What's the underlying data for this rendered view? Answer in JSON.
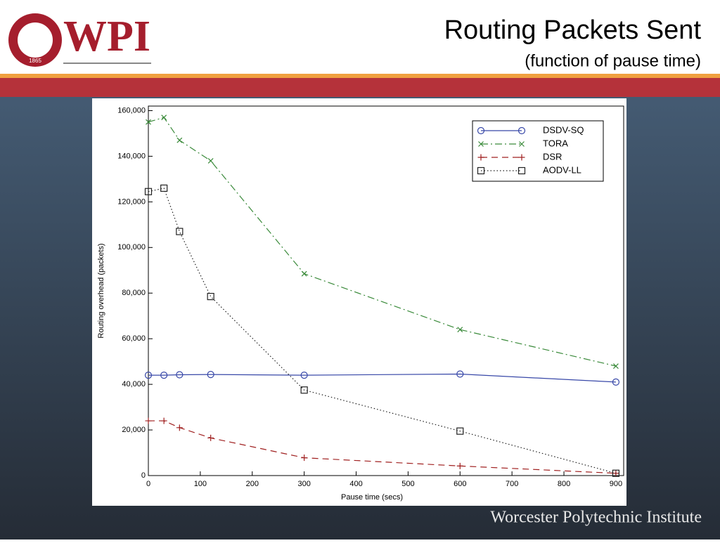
{
  "header": {
    "title": "Routing Packets Sent",
    "subtitle": "(function of pause time)",
    "logo": "WPI",
    "logo_year": "1865"
  },
  "footer": "Worcester Polytechnic Institute",
  "chart_data": {
    "type": "line",
    "xlabel": "Pause time (secs)",
    "ylabel": "Routing overhead (packets)",
    "x": [
      0,
      30,
      60,
      120,
      300,
      600,
      900
    ],
    "series": [
      {
        "name": "DSDV-SQ",
        "color": "#3848a8",
        "marker": "circle",
        "dash": "solid",
        "values": [
          44000,
          44000,
          44200,
          44300,
          44000,
          44500,
          41000
        ]
      },
      {
        "name": "TORA",
        "color": "#3a8a3a",
        "marker": "x",
        "dash": "dashdot",
        "values": [
          155000,
          157000,
          147000,
          138000,
          88500,
          64000,
          48000
        ]
      },
      {
        "name": "DSR",
        "color": "#a02020",
        "marker": "plus",
        "dash": "dashed",
        "values": [
          24000,
          24000,
          21000,
          16500,
          7800,
          4200,
          1000
        ]
      },
      {
        "name": "AODV-LL",
        "color": "#222222",
        "marker": "square",
        "dash": "dotted",
        "values": [
          124500,
          126000,
          107000,
          78500,
          37500,
          19500,
          1000
        ]
      }
    ],
    "xlim": [
      0,
      915
    ],
    "ylim": [
      0,
      162000
    ],
    "xticks": [
      0,
      100,
      200,
      300,
      400,
      500,
      600,
      700,
      800,
      900
    ],
    "yticks": [
      0,
      {
        "value": 20000,
        "label": "20,000"
      },
      {
        "value": 40000,
        "label": "40,000"
      },
      {
        "value": 60000,
        "label": "60,000"
      },
      {
        "value": 80000,
        "label": "80,000"
      },
      {
        "value": 100000,
        "label": "100,000"
      },
      {
        "value": 120000,
        "label": "120,000"
      },
      {
        "value": 140000,
        "label": "140,000"
      },
      {
        "value": 160000,
        "label": "160,000"
      }
    ],
    "legend": "upper right"
  }
}
